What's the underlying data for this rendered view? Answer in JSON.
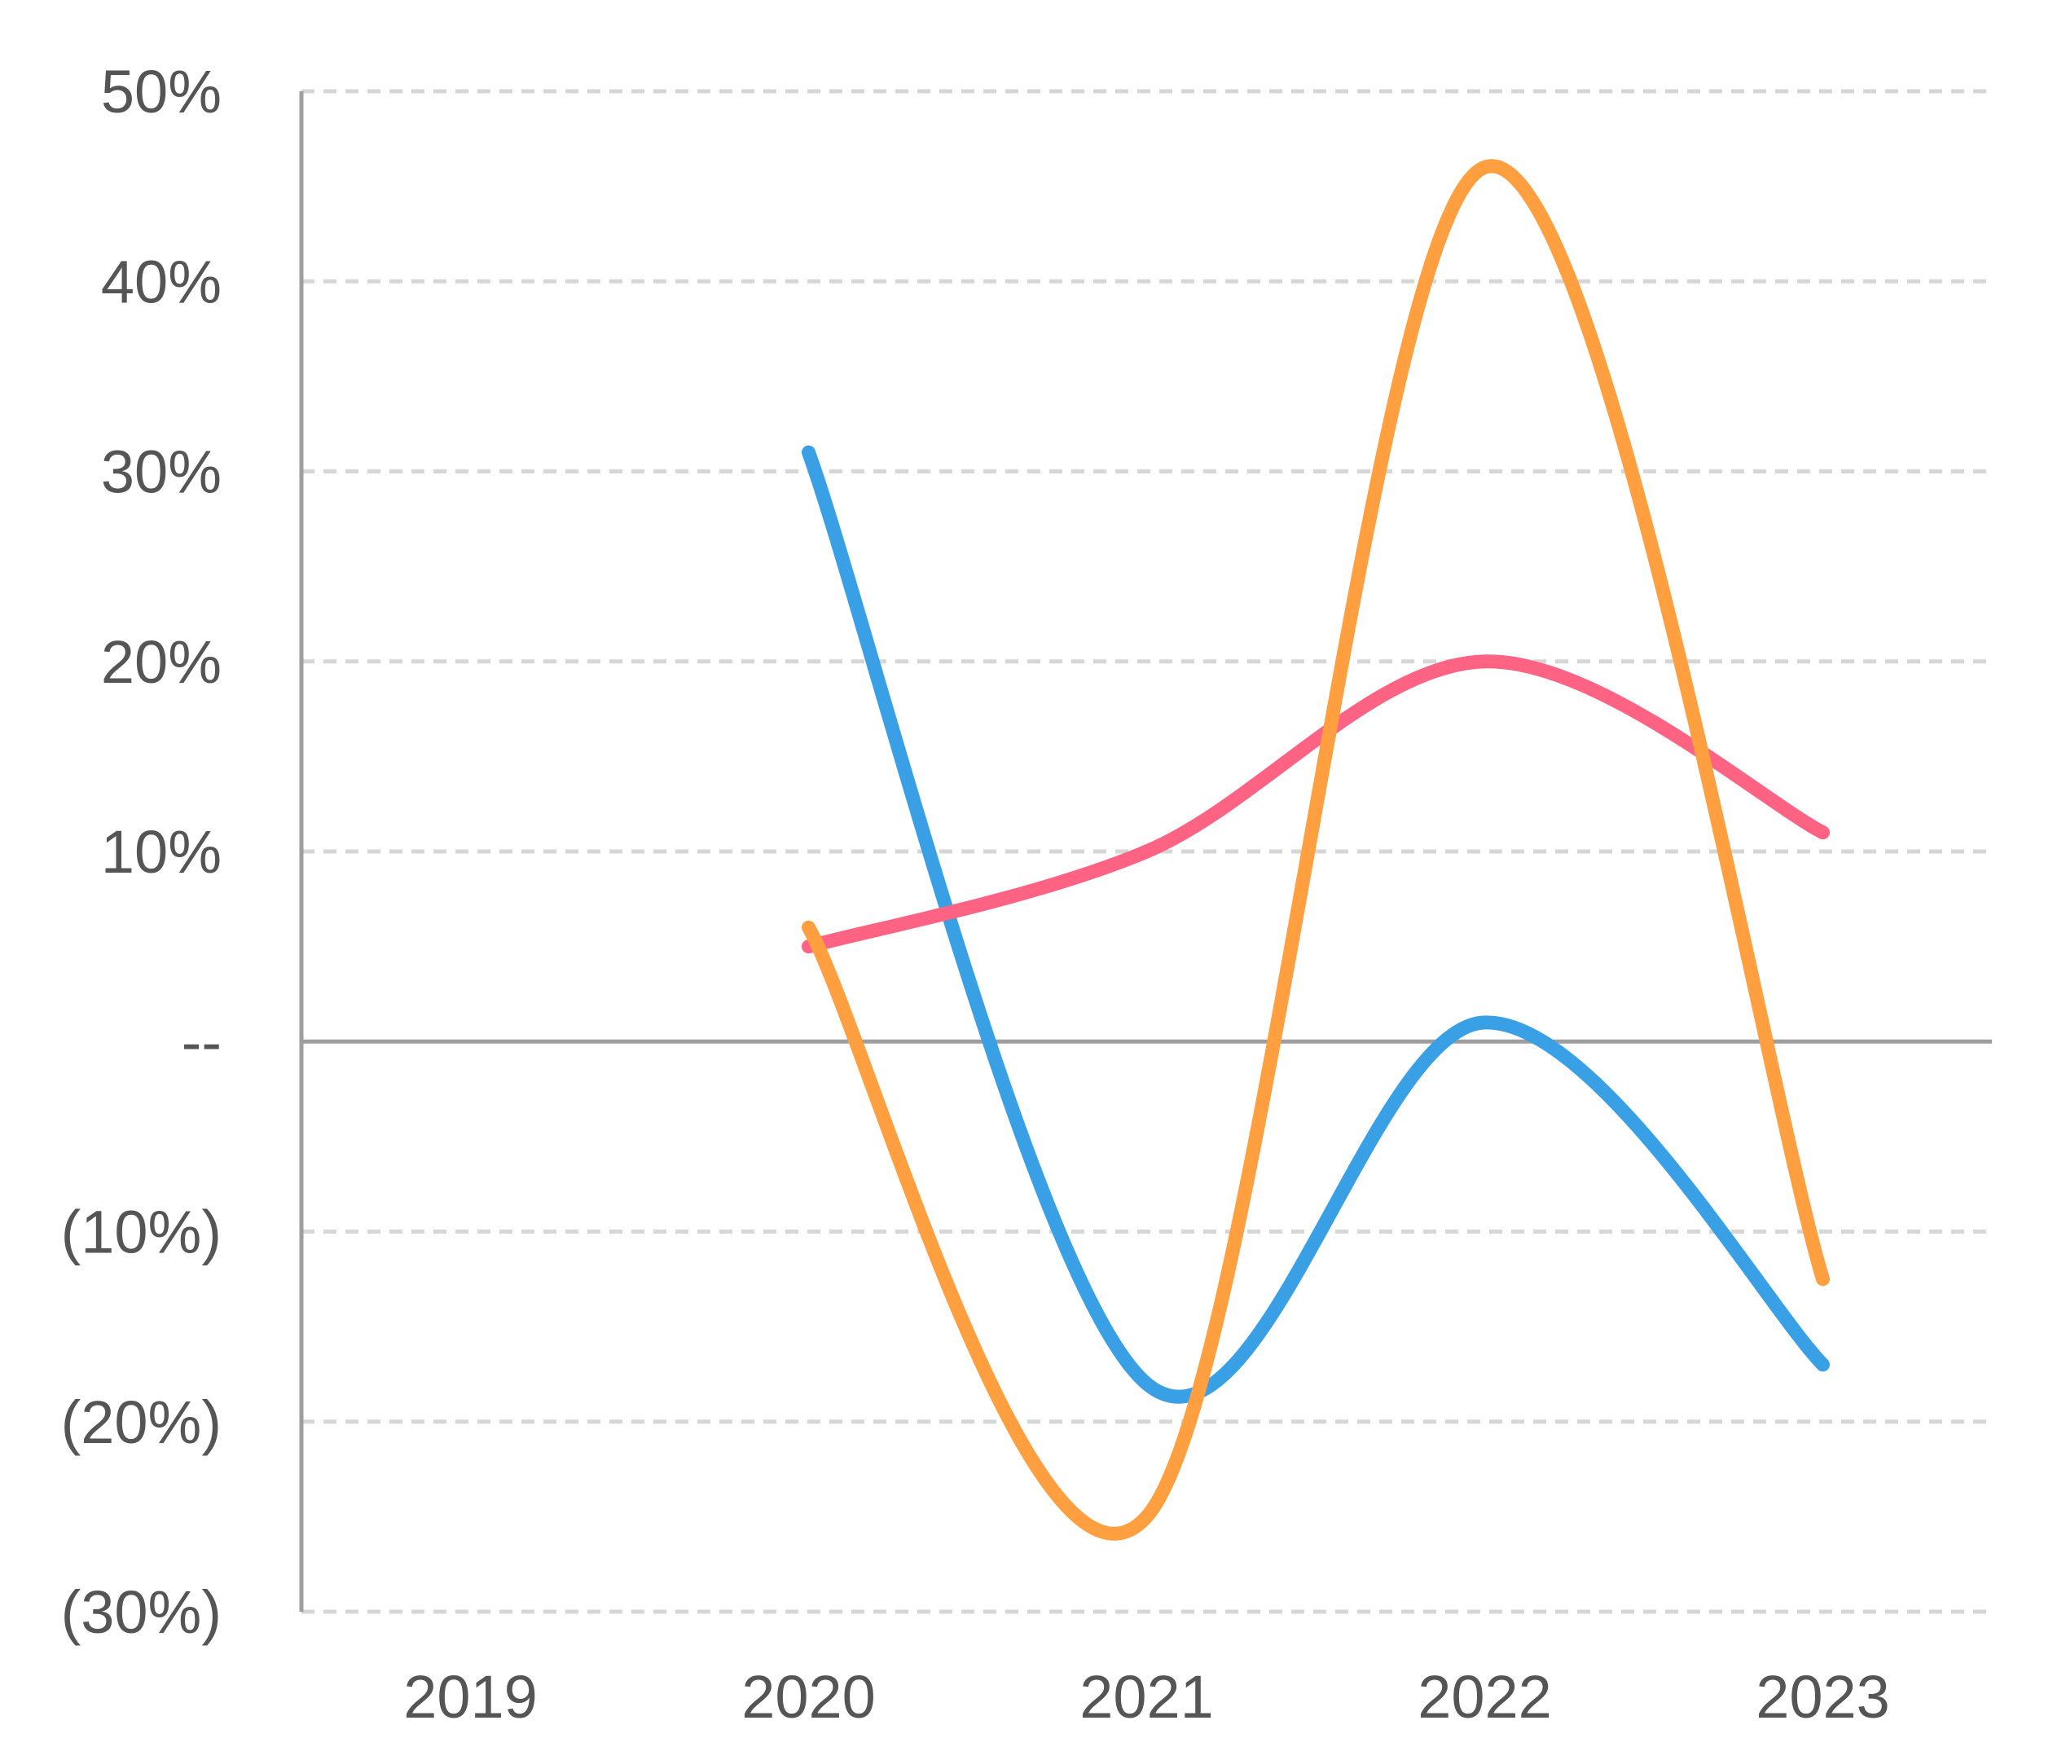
{
  "chart_data": {
    "type": "line",
    "categories": [
      "2019",
      "2020",
      "2021",
      "2022",
      "2023"
    ],
    "y_ticks": [
      {
        "value": 50,
        "label": "50%"
      },
      {
        "value": 40,
        "label": "40%"
      },
      {
        "value": 30,
        "label": "30%"
      },
      {
        "value": 20,
        "label": "20%"
      },
      {
        "value": 10,
        "label": "10%"
      },
      {
        "value": 0,
        "label": "--"
      },
      {
        "value": -10,
        "label": "(10%)"
      },
      {
        "value": -20,
        "label": "(20%)"
      },
      {
        "value": -30,
        "label": "(30%)"
      }
    ],
    "ylim": [
      -30,
      50
    ],
    "grid": true,
    "smooth": true,
    "series": [
      {
        "color": "#3aa0e6",
        "values": [
          null,
          31,
          -18,
          1,
          -17
        ]
      },
      {
        "color": "#ff6384",
        "values": [
          null,
          5,
          10,
          20,
          11
        ]
      },
      {
        "color": "#ff9f40",
        "values": [
          null,
          6,
          -25,
          46,
          -12.5
        ]
      }
    ]
  }
}
